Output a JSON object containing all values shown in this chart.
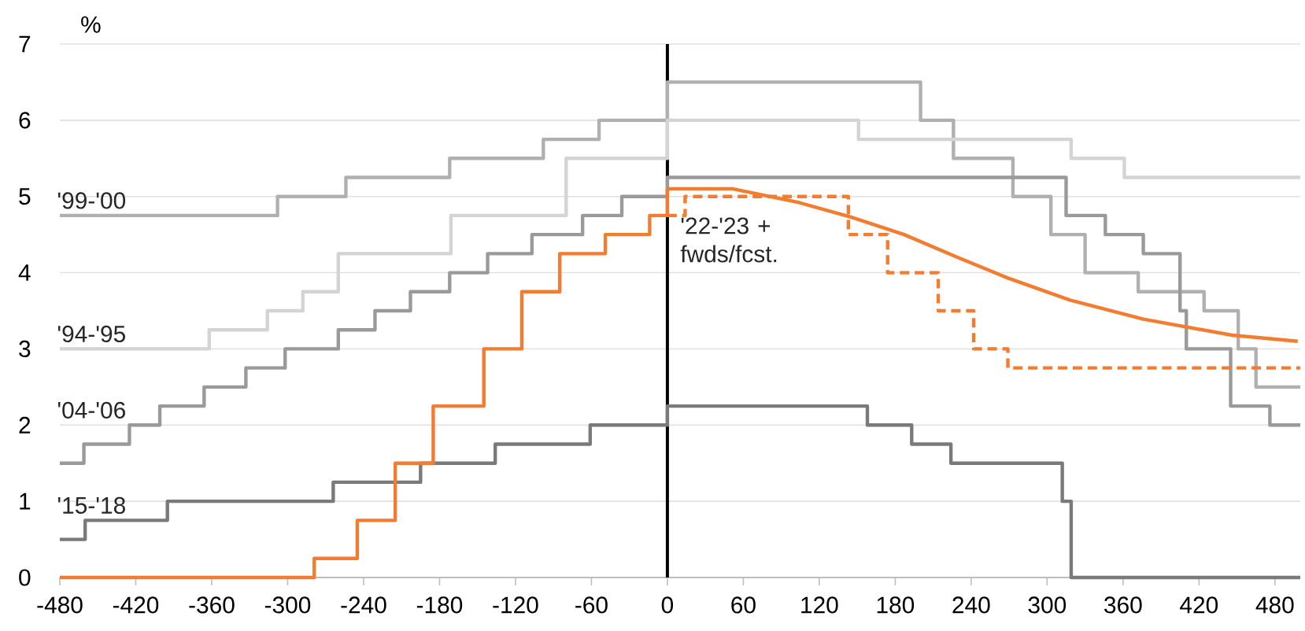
{
  "chart_data": {
    "type": "step",
    "ylabel": "%",
    "xlim": [
      -480,
      500
    ],
    "ylim": [
      0,
      7
    ],
    "xticks": [
      -480,
      -420,
      -360,
      -300,
      -240,
      -180,
      -120,
      -60,
      0,
      60,
      120,
      180,
      240,
      300,
      360,
      420,
      480
    ],
    "yticks": [
      0,
      1,
      2,
      3,
      4,
      5,
      6,
      7
    ],
    "grid": "y",
    "ref_lines": [
      {
        "axis": "x",
        "value": 0,
        "color": "#000000"
      }
    ],
    "series": [
      {
        "name": "'99-'00",
        "color": "#b0b0b0",
        "x": [
          -480,
          -308,
          -254,
          -172,
          -98,
          -54,
          0,
          200,
          226,
          273,
          303,
          330,
          372,
          424,
          451,
          465,
          500
        ],
        "values": [
          4.75,
          5.0,
          5.25,
          5.5,
          5.75,
          6.0,
          6.5,
          6.0,
          5.5,
          5.0,
          4.5,
          4.0,
          3.75,
          3.5,
          3.0,
          2.5,
          2.5
        ]
      },
      {
        "name": "'94-'95",
        "color": "#d4d4d4",
        "x": [
          -480,
          -362,
          -316,
          -288,
          -260,
          -171,
          -80,
          0,
          151,
          319,
          361,
          500
        ],
        "values": [
          3.0,
          3.25,
          3.5,
          3.75,
          4.25,
          4.75,
          5.5,
          6.0,
          5.75,
          5.5,
          5.25,
          5.25
        ]
      },
      {
        "name": "'04-'06",
        "color": "#9a9a9a",
        "x": [
          -480,
          -461,
          -425,
          -401,
          -366,
          -333,
          -302,
          -260,
          -231,
          -203,
          -172,
          -142,
          -107,
          -67,
          -36,
          0,
          315,
          346,
          376,
          405,
          410,
          445,
          476,
          500
        ],
        "values": [
          1.5,
          1.75,
          2.0,
          2.25,
          2.5,
          2.75,
          3.0,
          3.25,
          3.5,
          3.75,
          4.0,
          4.25,
          4.5,
          4.75,
          5.0,
          5.25,
          4.75,
          4.5,
          4.25,
          3.5,
          3.0,
          2.25,
          2.0,
          2.0
        ]
      },
      {
        "name": "'15-'18",
        "color": "#7a7a7a",
        "x": [
          -480,
          -460,
          -395,
          -264,
          -195,
          -136,
          -61,
          0,
          158,
          193,
          224,
          312,
          319,
          500
        ],
        "values": [
          0.5,
          0.75,
          1.0,
          1.25,
          1.5,
          1.75,
          2.0,
          2.25,
          2.0,
          1.75,
          1.5,
          1.0,
          0,
          0
        ]
      },
      {
        "color": "#f47c30",
        "x": [
          -480,
          -279,
          -245,
          -215,
          -185,
          -145,
          -115,
          -85,
          -49,
          -14,
          0
        ],
        "values": [
          0,
          0.25,
          0.75,
          1.5,
          2.25,
          3.0,
          3.75,
          4.25,
          4.5,
          4.75,
          5.1
        ]
      },
      {
        "name": "'22-'23 + fwds/fcst.",
        "type": "line",
        "color": "#f47c30",
        "x": [
          0,
          52,
          104,
          145,
          187,
          228,
          269,
          318,
          376,
          446,
          498
        ],
        "values": [
          5.1,
          5.1,
          4.92,
          4.73,
          4.5,
          4.21,
          3.93,
          3.64,
          3.39,
          3.18,
          3.1
        ]
      },
      {
        "line_style": "dashed",
        "color": "#f47c30",
        "x": [
          0,
          14,
          143,
          174,
          214,
          242,
          269,
          500
        ],
        "values": [
          4.75,
          5.0,
          4.5,
          4.0,
          3.5,
          3.0,
          2.75,
          2.75
        ]
      }
    ]
  }
}
